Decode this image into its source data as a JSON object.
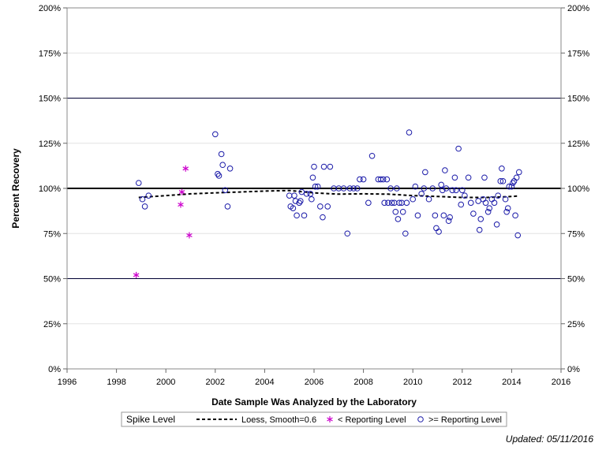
{
  "chart_data": {
    "type": "scatter",
    "xlabel": "Date Sample Was Analyzed by the Laboratory",
    "ylabel": "Percent Recovery",
    "xlim": [
      1996,
      2016
    ],
    "ylim": [
      0,
      200
    ],
    "x_ticks": [
      1996,
      1998,
      2000,
      2002,
      2004,
      2006,
      2008,
      2010,
      2012,
      2014,
      2016
    ],
    "y_ticks": [
      0,
      25,
      50,
      75,
      100,
      125,
      150,
      175,
      200
    ],
    "y_tick_suffix": "%",
    "reference_lines": [
      {
        "y": 100,
        "style": "thick"
      },
      {
        "y": 150,
        "style": "thin"
      },
      {
        "y": 50,
        "style": "thin"
      }
    ],
    "grid": true,
    "legend_position": "bottom",
    "legend_title": "Spike Level",
    "colors": {
      "reporting": "#1a1aa8",
      "below": "#cc00cc",
      "loess": "#000000",
      "refline": "#000033"
    },
    "series": [
      {
        "name": "< Reporting Level",
        "marker": "asterisk",
        "points": [
          [
            1998.8,
            52
          ],
          [
            2000.6,
            91
          ],
          [
            2000.65,
            98
          ],
          [
            2000.8,
            111
          ],
          [
            2000.95,
            74
          ]
        ]
      },
      {
        "name": ">= Reporting Level",
        "marker": "circle",
        "points": [
          [
            1998.9,
            103
          ],
          [
            1999.05,
            94
          ],
          [
            1999.15,
            90
          ],
          [
            1999.3,
            96
          ],
          [
            2002.0,
            130
          ],
          [
            2002.1,
            108
          ],
          [
            2002.15,
            107
          ],
          [
            2002.25,
            119
          ],
          [
            2002.3,
            113
          ],
          [
            2002.4,
            99
          ],
          [
            2002.5,
            90
          ],
          [
            2002.6,
            111
          ],
          [
            2005.0,
            96
          ],
          [
            2005.05,
            90
          ],
          [
            2005.15,
            89
          ],
          [
            2005.2,
            96
          ],
          [
            2005.25,
            93
          ],
          [
            2005.3,
            85
          ],
          [
            2005.4,
            92
          ],
          [
            2005.45,
            93
          ],
          [
            2005.5,
            98
          ],
          [
            2005.6,
            85
          ],
          [
            2005.7,
            97
          ],
          [
            2005.85,
            97
          ],
          [
            2005.9,
            94
          ],
          [
            2005.95,
            106
          ],
          [
            2006.0,
            112
          ],
          [
            2006.05,
            101
          ],
          [
            2006.15,
            101
          ],
          [
            2006.25,
            90
          ],
          [
            2006.35,
            84
          ],
          [
            2006.4,
            112
          ],
          [
            2006.55,
            90
          ],
          [
            2006.65,
            112
          ],
          [
            2006.8,
            100
          ],
          [
            2007.0,
            100
          ],
          [
            2007.2,
            100
          ],
          [
            2007.35,
            75
          ],
          [
            2007.45,
            100
          ],
          [
            2007.6,
            100
          ],
          [
            2007.75,
            100
          ],
          [
            2007.85,
            105
          ],
          [
            2008.0,
            105
          ],
          [
            2008.2,
            92
          ],
          [
            2008.35,
            118
          ],
          [
            2008.6,
            105
          ],
          [
            2008.7,
            105
          ],
          [
            2008.8,
            105
          ],
          [
            2008.85,
            92
          ],
          [
            2008.95,
            105
          ],
          [
            2009.0,
            92
          ],
          [
            2009.1,
            100
          ],
          [
            2009.15,
            92
          ],
          [
            2009.25,
            92
          ],
          [
            2009.3,
            87
          ],
          [
            2009.35,
            100
          ],
          [
            2009.4,
            83
          ],
          [
            2009.45,
            92
          ],
          [
            2009.55,
            92
          ],
          [
            2009.6,
            87
          ],
          [
            2009.7,
            75
          ],
          [
            2009.75,
            92
          ],
          [
            2009.85,
            131
          ],
          [
            2010.0,
            94
          ],
          [
            2010.1,
            101
          ],
          [
            2010.2,
            85
          ],
          [
            2010.35,
            97
          ],
          [
            2010.45,
            100
          ],
          [
            2010.5,
            109
          ],
          [
            2010.65,
            94
          ],
          [
            2010.8,
            100
          ],
          [
            2010.9,
            85
          ],
          [
            2010.95,
            78
          ],
          [
            2011.05,
            76
          ],
          [
            2011.15,
            102
          ],
          [
            2011.2,
            99
          ],
          [
            2011.25,
            85
          ],
          [
            2011.3,
            110
          ],
          [
            2011.35,
            100
          ],
          [
            2011.45,
            82
          ],
          [
            2011.5,
            84
          ],
          [
            2011.6,
            99
          ],
          [
            2011.7,
            106
          ],
          [
            2011.75,
            99
          ],
          [
            2011.85,
            122
          ],
          [
            2011.95,
            91
          ],
          [
            2012.0,
            99
          ],
          [
            2012.1,
            96
          ],
          [
            2012.25,
            106
          ],
          [
            2012.35,
            92
          ],
          [
            2012.45,
            86
          ],
          [
            2012.65,
            93
          ],
          [
            2012.7,
            77
          ],
          [
            2012.75,
            83
          ],
          [
            2012.85,
            94
          ],
          [
            2012.9,
            106
          ],
          [
            2012.95,
            92
          ],
          [
            2013.05,
            87
          ],
          [
            2013.1,
            89
          ],
          [
            2013.2,
            94
          ],
          [
            2013.3,
            92
          ],
          [
            2013.4,
            80
          ],
          [
            2013.45,
            96
          ],
          [
            2013.55,
            104
          ],
          [
            2013.6,
            111
          ],
          [
            2013.65,
            104
          ],
          [
            2013.75,
            94
          ],
          [
            2013.8,
            87
          ],
          [
            2013.85,
            89
          ],
          [
            2013.9,
            101
          ],
          [
            2014.0,
            101
          ],
          [
            2014.05,
            103
          ],
          [
            2014.1,
            104
          ],
          [
            2014.15,
            85
          ],
          [
            2014.2,
            106
          ],
          [
            2014.25,
            74
          ],
          [
            2014.3,
            109
          ]
        ]
      },
      {
        "name": "Loess, Smooth=0.6",
        "line": "dashed",
        "points": [
          [
            1998.9,
            95
          ],
          [
            2000.0,
            96
          ],
          [
            2001.0,
            97
          ],
          [
            2002.0,
            97.5
          ],
          [
            2003.0,
            98
          ],
          [
            2004.0,
            98.5
          ],
          [
            2005.0,
            98.8
          ],
          [
            2006.0,
            97.5
          ],
          [
            2007.0,
            96.8
          ],
          [
            2008.0,
            97
          ],
          [
            2009.0,
            96.8
          ],
          [
            2010.0,
            96
          ],
          [
            2011.0,
            95.5
          ],
          [
            2012.0,
            95
          ],
          [
            2013.0,
            95
          ],
          [
            2014.0,
            95.5
          ],
          [
            2014.3,
            95.8
          ]
        ]
      }
    ]
  },
  "footer": {
    "updated": "Updated: 05/11/2016"
  }
}
